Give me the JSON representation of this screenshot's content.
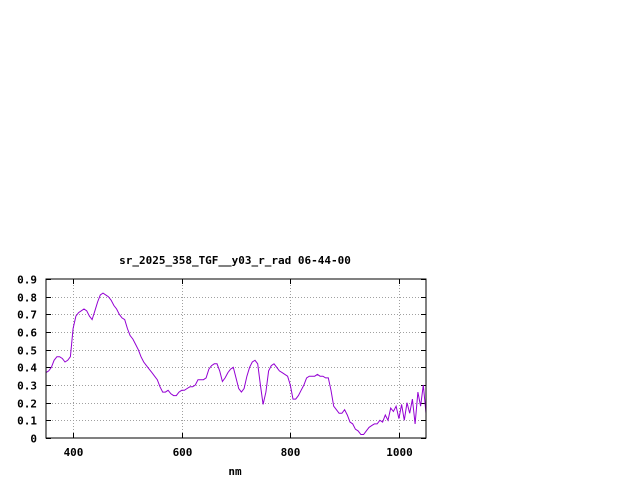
{
  "chart_data": {
    "type": "line",
    "title": "sr_2025_358_TGF__y03_r_rad 06-44-00",
    "xlabel": "nm",
    "ylabel": "",
    "xlim": [
      350,
      1050
    ],
    "ylim": [
      0,
      0.9
    ],
    "x_ticks": [
      400,
      600,
      800,
      1000
    ],
    "y_ticks": [
      0,
      0.1,
      0.2,
      0.3,
      0.4,
      0.5,
      0.6,
      0.7,
      0.8,
      0.9
    ],
    "grid": true,
    "line_color": "#9400d3",
    "series": [
      {
        "values": [
          [
            350,
            0.37
          ],
          [
            355,
            0.38
          ],
          [
            360,
            0.4
          ],
          [
            365,
            0.44
          ],
          [
            370,
            0.46
          ],
          [
            375,
            0.46
          ],
          [
            380,
            0.45
          ],
          [
            385,
            0.43
          ],
          [
            390,
            0.44
          ],
          [
            395,
            0.46
          ],
          [
            400,
            0.62
          ],
          [
            405,
            0.69
          ],
          [
            410,
            0.71
          ],
          [
            415,
            0.72
          ],
          [
            420,
            0.73
          ],
          [
            425,
            0.72
          ],
          [
            430,
            0.69
          ],
          [
            435,
            0.67
          ],
          [
            440,
            0.72
          ],
          [
            445,
            0.77
          ],
          [
            450,
            0.81
          ],
          [
            455,
            0.82
          ],
          [
            460,
            0.81
          ],
          [
            465,
            0.8
          ],
          [
            470,
            0.78
          ],
          [
            475,
            0.75
          ],
          [
            480,
            0.73
          ],
          [
            485,
            0.7
          ],
          [
            490,
            0.68
          ],
          [
            495,
            0.67
          ],
          [
            500,
            0.62
          ],
          [
            505,
            0.58
          ],
          [
            510,
            0.56
          ],
          [
            515,
            0.53
          ],
          [
            520,
            0.5
          ],
          [
            525,
            0.46
          ],
          [
            530,
            0.43
          ],
          [
            535,
            0.41
          ],
          [
            540,
            0.39
          ],
          [
            545,
            0.37
          ],
          [
            550,
            0.35
          ],
          [
            555,
            0.33
          ],
          [
            560,
            0.29
          ],
          [
            565,
            0.26
          ],
          [
            570,
            0.26
          ],
          [
            575,
            0.27
          ],
          [
            580,
            0.25
          ],
          [
            585,
            0.24
          ],
          [
            590,
            0.24
          ],
          [
            595,
            0.26
          ],
          [
            600,
            0.27
          ],
          [
            605,
            0.27
          ],
          [
            610,
            0.28
          ],
          [
            615,
            0.29
          ],
          [
            620,
            0.29
          ],
          [
            625,
            0.3
          ],
          [
            630,
            0.33
          ],
          [
            635,
            0.33
          ],
          [
            640,
            0.33
          ],
          [
            645,
            0.34
          ],
          [
            650,
            0.39
          ],
          [
            655,
            0.41
          ],
          [
            660,
            0.42
          ],
          [
            665,
            0.42
          ],
          [
            670,
            0.38
          ],
          [
            675,
            0.32
          ],
          [
            680,
            0.34
          ],
          [
            685,
            0.37
          ],
          [
            690,
            0.39
          ],
          [
            695,
            0.4
          ],
          [
            700,
            0.34
          ],
          [
            705,
            0.28
          ],
          [
            710,
            0.26
          ],
          [
            715,
            0.28
          ],
          [
            720,
            0.35
          ],
          [
            725,
            0.4
          ],
          [
            730,
            0.43
          ],
          [
            735,
            0.44
          ],
          [
            740,
            0.42
          ],
          [
            745,
            0.3
          ],
          [
            750,
            0.19
          ],
          [
            755,
            0.26
          ],
          [
            760,
            0.38
          ],
          [
            765,
            0.41
          ],
          [
            770,
            0.42
          ],
          [
            775,
            0.4
          ],
          [
            780,
            0.38
          ],
          [
            785,
            0.37
          ],
          [
            790,
            0.36
          ],
          [
            795,
            0.35
          ],
          [
            800,
            0.3
          ],
          [
            805,
            0.22
          ],
          [
            810,
            0.22
          ],
          [
            815,
            0.24
          ],
          [
            820,
            0.27
          ],
          [
            825,
            0.3
          ],
          [
            830,
            0.34
          ],
          [
            835,
            0.35
          ],
          [
            840,
            0.35
          ],
          [
            845,
            0.35
          ],
          [
            850,
            0.36
          ],
          [
            855,
            0.35
          ],
          [
            860,
            0.35
          ],
          [
            865,
            0.34
          ],
          [
            870,
            0.34
          ],
          [
            875,
            0.27
          ],
          [
            880,
            0.18
          ],
          [
            885,
            0.16
          ],
          [
            890,
            0.14
          ],
          [
            895,
            0.14
          ],
          [
            900,
            0.16
          ],
          [
            905,
            0.13
          ],
          [
            910,
            0.09
          ],
          [
            915,
            0.08
          ],
          [
            920,
            0.05
          ],
          [
            925,
            0.04
          ],
          [
            930,
            0.02
          ],
          [
            935,
            0.02
          ],
          [
            940,
            0.04
          ],
          [
            945,
            0.06
          ],
          [
            950,
            0.07
          ],
          [
            955,
            0.08
          ],
          [
            960,
            0.08
          ],
          [
            965,
            0.1
          ],
          [
            970,
            0.09
          ],
          [
            975,
            0.13
          ],
          [
            980,
            0.1
          ],
          [
            985,
            0.17
          ],
          [
            990,
            0.15
          ],
          [
            995,
            0.18
          ],
          [
            1000,
            0.11
          ],
          [
            1005,
            0.19
          ],
          [
            1010,
            0.1
          ],
          [
            1015,
            0.2
          ],
          [
            1020,
            0.14
          ],
          [
            1025,
            0.22
          ],
          [
            1030,
            0.08
          ],
          [
            1035,
            0.26
          ],
          [
            1040,
            0.18
          ],
          [
            1045,
            0.3
          ],
          [
            1050,
            0.14
          ]
        ]
      }
    ]
  }
}
